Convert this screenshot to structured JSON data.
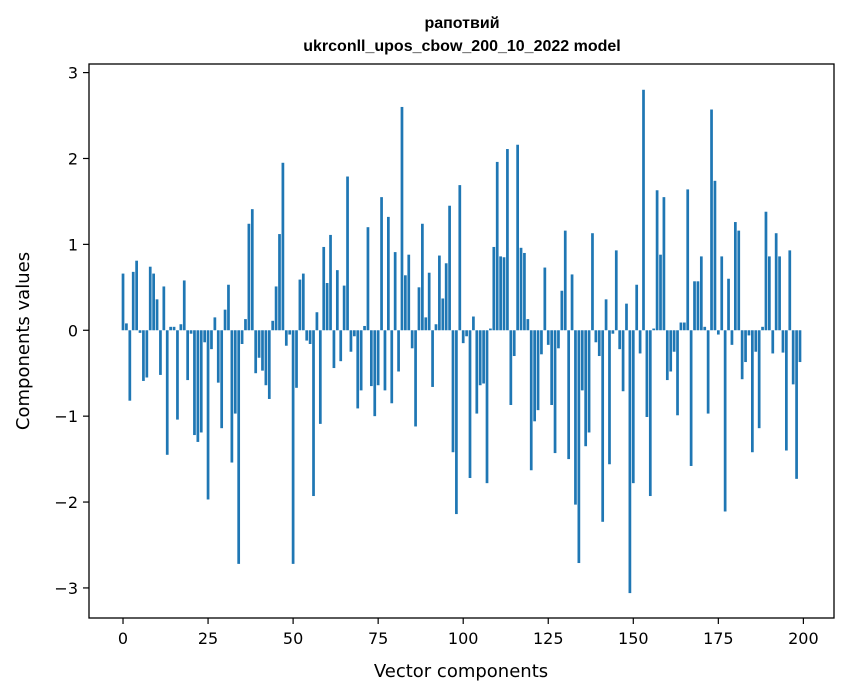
{
  "chart_data": {
    "type": "bar",
    "title": "рапотвий",
    "subtitle": "ukrconll_upos_cbow_200_10_2022 model",
    "xlabel": "Vector components",
    "ylabel": "Components values",
    "xlim": [
      -10,
      209
    ],
    "ylim": [
      -3.35,
      3.1
    ],
    "xticks": [
      0,
      25,
      50,
      75,
      100,
      125,
      150,
      175,
      200
    ],
    "yticks": [
      -3,
      -2,
      -1,
      0,
      1,
      2,
      3
    ],
    "xtick_labels": [
      "0",
      "25",
      "50",
      "75",
      "100",
      "125",
      "150",
      "175",
      "200"
    ],
    "ytick_labels": [
      "−3",
      "−2",
      "−1",
      "0",
      "1",
      "2",
      "3"
    ],
    "bar_color": "#1f77b4",
    "grid": false,
    "values": [
      0.66,
      0.08,
      -0.82,
      0.68,
      0.81,
      -0.03,
      -0.59,
      -0.55,
      0.74,
      0.66,
      0.36,
      -0.52,
      0.51,
      -1.45,
      0.04,
      0.04,
      -1.04,
      0.07,
      0.58,
      -0.58,
      -0.04,
      -1.22,
      -1.3,
      -1.19,
      -0.14,
      -1.97,
      -0.22,
      0.15,
      -0.61,
      -1.14,
      0.24,
      0.53,
      -1.54,
      -0.97,
      -2.72,
      -0.16,
      0.13,
      1.24,
      1.41,
      -0.5,
      -0.32,
      -0.47,
      -0.64,
      -0.8,
      0.11,
      0.51,
      1.12,
      1.95,
      -0.18,
      -0.05,
      -2.72,
      -0.67,
      0.59,
      0.66,
      -0.12,
      -0.16,
      -1.93,
      0.21,
      -1.09,
      0.97,
      0.55,
      1.11,
      -0.44,
      0.7,
      -0.36,
      0.52,
      1.79,
      -0.25,
      -0.07,
      -0.91,
      -0.7,
      0.05,
      1.2,
      -0.65,
      -1.0,
      -0.64,
      1.55,
      -0.7,
      1.32,
      -0.85,
      0.91,
      -0.48,
      2.6,
      0.64,
      0.88,
      -0.21,
      -1.12,
      0.5,
      1.24,
      0.15,
      0.67,
      -0.66,
      0.07,
      0.87,
      0.37,
      0.78,
      1.45,
      -1.42,
      -2.14,
      1.69,
      -0.15,
      -0.07,
      -1.72,
      0.16,
      -0.97,
      -0.64,
      -0.62,
      -1.78,
      0.02,
      0.97,
      1.96,
      0.86,
      0.85,
      2.11,
      -0.87,
      -0.3,
      2.16,
      0.96,
      0.9,
      0.13,
      -1.63,
      -1.06,
      -0.93,
      -0.28,
      0.73,
      -0.17,
      -0.87,
      -1.43,
      -0.21,
      0.46,
      1.16,
      -1.5,
      0.65,
      -2.03,
      -2.71,
      -0.7,
      -1.35,
      -1.19,
      1.13,
      -0.14,
      -0.3,
      -2.23,
      0.36,
      -1.56,
      -0.04,
      0.93,
      -0.22,
      -0.71,
      0.31,
      -3.06,
      -1.78,
      0.53,
      -0.27,
      2.8,
      -1.01,
      -1.93,
      0.02,
      1.63,
      0.88,
      1.55,
      -0.58,
      -0.48,
      -0.25,
      -0.99,
      0.09,
      0.09,
      1.64,
      -1.58,
      0.57,
      0.57,
      0.86,
      0.04,
      -0.97,
      2.57,
      1.74,
      -0.05,
      0.86,
      -2.11,
      0.6,
      -0.17,
      1.26,
      1.16,
      -0.57,
      -0.37,
      -0.06,
      -1.42,
      -0.25,
      -1.14,
      0.04,
      1.38,
      0.86,
      -0.27,
      1.13,
      0.86,
      -0.26,
      -1.4,
      0.93,
      -0.63,
      -1.73,
      -0.37
    ]
  }
}
